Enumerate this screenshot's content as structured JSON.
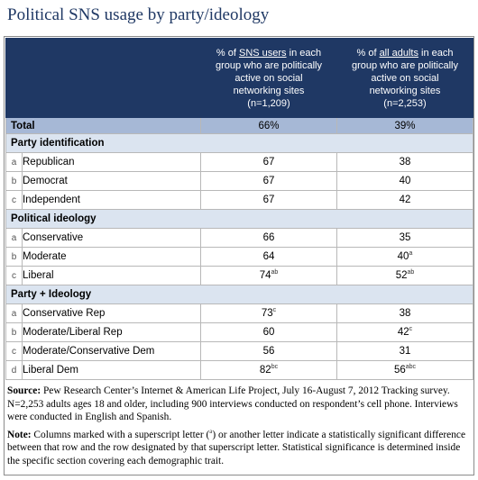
{
  "title": "Political SNS usage by party/ideology",
  "columns": {
    "col1": {
      "line1_pre": "% of ",
      "line1_underline": "SNS users",
      "line1_post": " in each",
      "rest": [
        "group who are politically",
        "active on social",
        "networking sites"
      ],
      "n": "(n=1,209)"
    },
    "col2": {
      "line1_pre": "% of ",
      "line1_underline": "all adults",
      "line1_post": " in each",
      "rest": [
        "group who are politically",
        "active on social",
        "networking sites"
      ],
      "n": "(n=2,253)"
    }
  },
  "total": {
    "label": "Total",
    "sns": "66%",
    "adults": "39%"
  },
  "sections": [
    {
      "heading": "Party identification",
      "rows": [
        {
          "letter": "a",
          "label": "Republican",
          "sns": "67",
          "sns_sup": "",
          "adults": "38",
          "adults_sup": ""
        },
        {
          "letter": "b",
          "label": "Democrat",
          "sns": "67",
          "sns_sup": "",
          "adults": "40",
          "adults_sup": ""
        },
        {
          "letter": "c",
          "label": "Independent",
          "sns": "67",
          "sns_sup": "",
          "adults": "42",
          "adults_sup": ""
        }
      ]
    },
    {
      "heading": "Political ideology",
      "rows": [
        {
          "letter": "a",
          "label": "Conservative",
          "sns": "66",
          "sns_sup": "",
          "adults": "35",
          "adults_sup": ""
        },
        {
          "letter": "b",
          "label": "Moderate",
          "sns": "64",
          "sns_sup": "",
          "adults": "40",
          "adults_sup": "a"
        },
        {
          "letter": "c",
          "label": "Liberal",
          "sns": "74",
          "sns_sup": "ab",
          "adults": "52",
          "adults_sup": "ab"
        }
      ]
    },
    {
      "heading": "Party + Ideology",
      "rows": [
        {
          "letter": "a",
          "label": "Conservative Rep",
          "sns": "73",
          "sns_sup": "c",
          "adults": "38",
          "adults_sup": ""
        },
        {
          "letter": "b",
          "label": "Moderate/Liberal Rep",
          "sns": "60",
          "sns_sup": "",
          "adults": "42",
          "adults_sup": "c"
        },
        {
          "letter": "c",
          "label": "Moderate/Conservative Dem",
          "sns": "56",
          "sns_sup": "",
          "adults": "31",
          "adults_sup": ""
        },
        {
          "letter": "d",
          "label": "Liberal Dem",
          "sns": "82",
          "sns_sup": "bc",
          "adults": "56",
          "adults_sup": "abc"
        }
      ]
    }
  ],
  "source": {
    "label": "Source:",
    "text": " Pew Research Center’s Internet & American Life Project, July 16-August 7, 2012 Tracking survey. N=2,253 adults ages 18 and older, including 900 interviews conducted on respondent’s cell phone.  Interviews were conducted in English and Spanish."
  },
  "note": {
    "label": "Note:",
    "text_pre": " Columns marked with a superscript letter (",
    "sup": "a",
    "text_post": ") or another letter indicate a statistically significant difference between that row and the row designated by that superscript letter. Statistical significance is determined inside the specific section covering each demographic trait."
  }
}
